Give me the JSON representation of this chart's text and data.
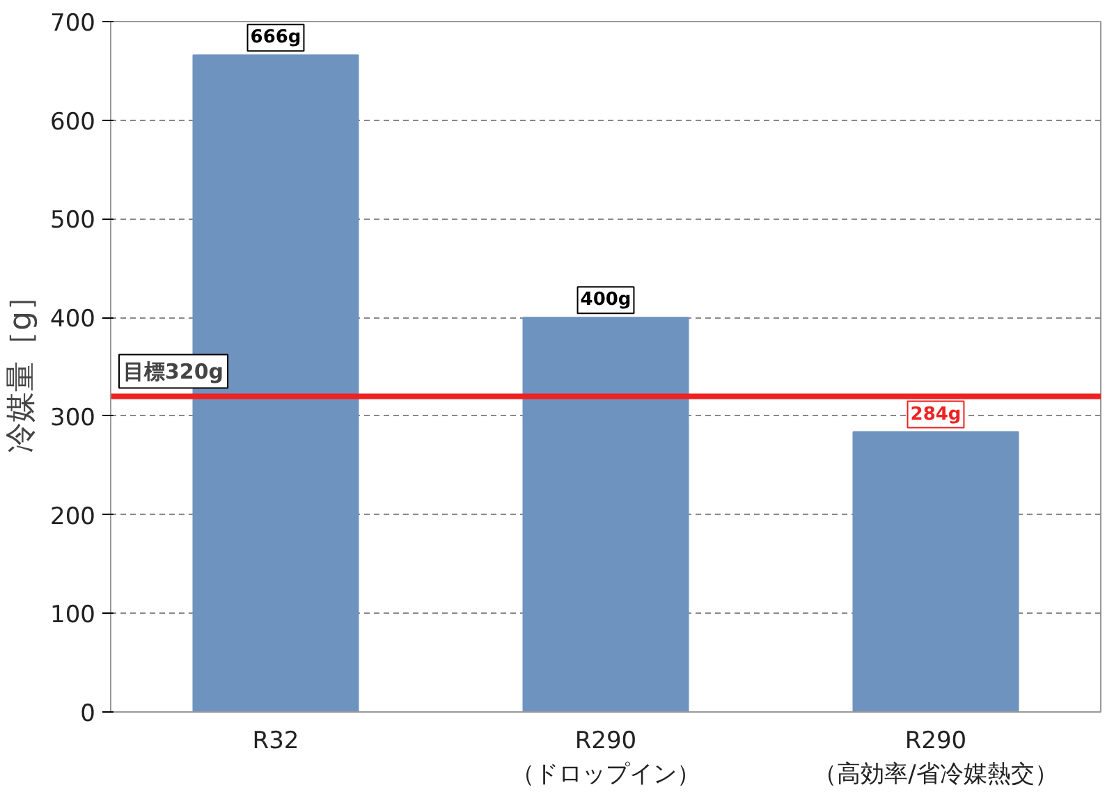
{
  "chart_data": {
    "type": "bar",
    "ylabel": "冷媒量［g］",
    "categories": [
      "R32",
      "R290\n（ドロップイン）",
      "R290\n（高効率/省冷媒熱交）"
    ],
    "values": [
      666,
      400,
      284
    ],
    "value_labels": [
      "666g",
      "400g",
      "284g"
    ],
    "color": "#6f93bf",
    "ylim": [
      0,
      700
    ],
    "yticks": [
      0,
      100,
      200,
      300,
      400,
      500,
      600,
      700
    ],
    "grid": "y",
    "ref_lines": [
      {
        "axis": "y",
        "value": 320,
        "label": "目標320g",
        "color": "#ee2222"
      }
    ]
  }
}
